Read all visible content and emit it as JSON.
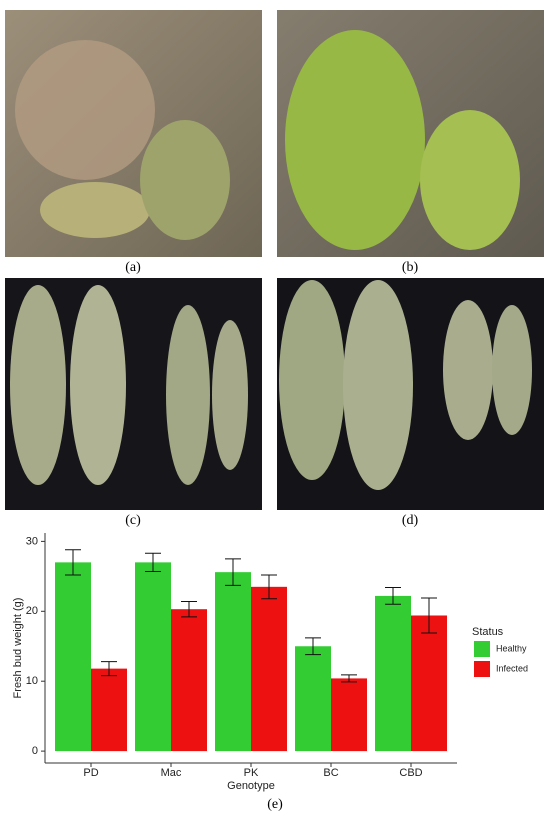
{
  "panel_labels": [
    "(a)",
    "(b)",
    "(c)",
    "(d)",
    "(e)"
  ],
  "chart_data": {
    "type": "bar",
    "x_label": "Genotype",
    "y_label": "Fresh bud weight (g)",
    "categories": [
      "PD",
      "Mac",
      "PK",
      "BC",
      "CBD"
    ],
    "series": [
      {
        "name": "Healthy",
        "color": "#33cc33",
        "values": [
          27,
          27,
          25.6,
          15,
          22.2
        ],
        "errors": [
          1.8,
          1.3,
          1.9,
          1.2,
          1.2
        ]
      },
      {
        "name": "Infected",
        "color": "#ee1111",
        "values": [
          11.8,
          20.3,
          23.5,
          10.4,
          19.4
        ],
        "errors": [
          1.0,
          1.1,
          1.7,
          0.5,
          2.5
        ]
      }
    ],
    "ylim": [
      -1.7,
      31.2
    ],
    "yticks": [
      0,
      10,
      20,
      30
    ],
    "legend_title": "Status",
    "legend": "right",
    "grid": false
  }
}
